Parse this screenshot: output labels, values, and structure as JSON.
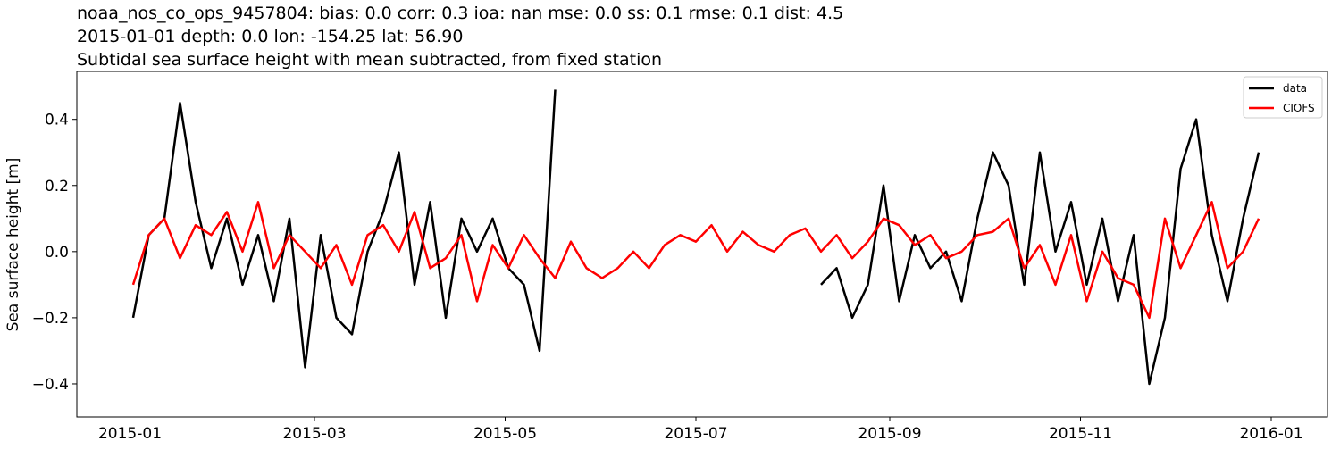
{
  "chart_data": {
    "type": "line",
    "title": [
      "noaa_nos_co_ops_9457804: bias: 0.0  corr: 0.3  ioa: nan  mse: 0.0  ss: 0.1  rmse: 0.1  dist: 4.5",
      "2015-01-01 depth: 0.0 lon: -154.25 lat: 56.90",
      "Subtidal sea surface height with mean subtracted, from fixed station"
    ],
    "y_label": "Sea surface height [m]",
    "x": [
      "2015-01-02",
      "2015-01-07",
      "2015-01-12",
      "2015-01-17",
      "2015-01-22",
      "2015-01-27",
      "2015-02-01",
      "2015-02-06",
      "2015-02-11",
      "2015-02-16",
      "2015-02-21",
      "2015-02-26",
      "2015-03-03",
      "2015-03-08",
      "2015-03-13",
      "2015-03-18",
      "2015-03-23",
      "2015-03-28",
      "2015-04-02",
      "2015-04-07",
      "2015-04-12",
      "2015-04-17",
      "2015-04-22",
      "2015-04-27",
      "2015-05-02",
      "2015-05-07",
      "2015-05-12",
      "2015-05-17",
      "2015-05-22",
      "2015-05-27",
      "2015-06-01",
      "2015-06-06",
      "2015-06-11",
      "2015-06-16",
      "2015-06-21",
      "2015-06-26",
      "2015-07-01",
      "2015-07-06",
      "2015-07-11",
      "2015-07-16",
      "2015-07-21",
      "2015-07-26",
      "2015-07-31",
      "2015-08-05",
      "2015-08-10",
      "2015-08-15",
      "2015-08-20",
      "2015-08-25",
      "2015-08-30",
      "2015-09-04",
      "2015-09-09",
      "2015-09-14",
      "2015-09-19",
      "2015-09-24",
      "2015-09-29",
      "2015-10-04",
      "2015-10-09",
      "2015-10-14",
      "2015-10-19",
      "2015-10-24",
      "2015-10-29",
      "2015-11-03",
      "2015-11-08",
      "2015-11-13",
      "2015-11-18",
      "2015-11-23",
      "2015-11-28",
      "2015-12-03",
      "2015-12-08",
      "2015-12-13",
      "2015-12-18",
      "2015-12-23",
      "2015-12-28"
    ],
    "series": [
      {
        "name": "data",
        "color": "#000000",
        "values": [
          -0.2,
          0.05,
          0.1,
          0.45,
          0.15,
          -0.05,
          0.1,
          -0.1,
          0.05,
          -0.15,
          0.1,
          -0.35,
          0.05,
          -0.2,
          -0.25,
          0,
          0.12,
          0.3,
          -0.1,
          0.15,
          -0.2,
          0.1,
          0,
          0.1,
          -0.05,
          -0.1,
          -0.3,
          0.49,
          null,
          null,
          null,
          null,
          null,
          null,
          null,
          null,
          null,
          null,
          null,
          null,
          null,
          null,
          null,
          null,
          -0.1,
          -0.05,
          -0.2,
          -0.1,
          0.2,
          -0.15,
          0.05,
          -0.05,
          0,
          -0.15,
          0.1,
          0.3,
          0.2,
          -0.1,
          0.3,
          0,
          0.15,
          -0.1,
          0.1,
          -0.15,
          0.05,
          -0.4,
          -0.2,
          0.25,
          0.4,
          0.05,
          -0.15,
          0.1,
          0.3
        ]
      },
      {
        "name": "CIOFS",
        "color": "#ff0000",
        "values": [
          -0.1,
          0.05,
          0.1,
          -0.02,
          0.08,
          0.05,
          0.12,
          0,
          0.15,
          -0.05,
          0.05,
          0,
          -0.05,
          0.02,
          -0.1,
          0.05,
          0.08,
          0,
          0.12,
          -0.05,
          -0.02,
          0.05,
          -0.15,
          0.02,
          -0.05,
          0.05,
          -0.02,
          -0.08,
          0.03,
          -0.05,
          -0.08,
          -0.05,
          0,
          -0.05,
          0.02,
          0.05,
          0.03,
          0.08,
          0,
          0.06,
          0.02,
          0,
          0.05,
          0.07,
          0,
          0.05,
          -0.02,
          0.03,
          0.1,
          0.08,
          0.02,
          0.05,
          -0.02,
          0,
          0.05,
          0.06,
          0.1,
          -0.05,
          0.02,
          -0.1,
          0.05,
          -0.15,
          0,
          -0.08,
          -0.1,
          -0.2,
          0.1,
          -0.05,
          0.05,
          0.15,
          -0.05,
          0,
          0.1
        ]
      }
    ],
    "xlim": [
      "2014-12-15",
      "2016-01-19"
    ],
    "xticks": [
      {
        "value": "2015-01-01",
        "label": "2015-01"
      },
      {
        "value": "2015-03-01",
        "label": "2015-03"
      },
      {
        "value": "2015-05-01",
        "label": "2015-05"
      },
      {
        "value": "2015-07-01",
        "label": "2015-07"
      },
      {
        "value": "2015-09-01",
        "label": "2015-09"
      },
      {
        "value": "2015-11-01",
        "label": "2015-11"
      },
      {
        "value": "2016-01-01",
        "label": "2016-01"
      }
    ],
    "ylim": [
      -0.5,
      0.545
    ],
    "yticks": [
      {
        "value": -0.4,
        "label": "−0.4"
      },
      {
        "value": -0.2,
        "label": "−0.2"
      },
      {
        "value": 0,
        "label": "0.0"
      },
      0.2,
      0.4
    ],
    "legend": "upper right"
  }
}
